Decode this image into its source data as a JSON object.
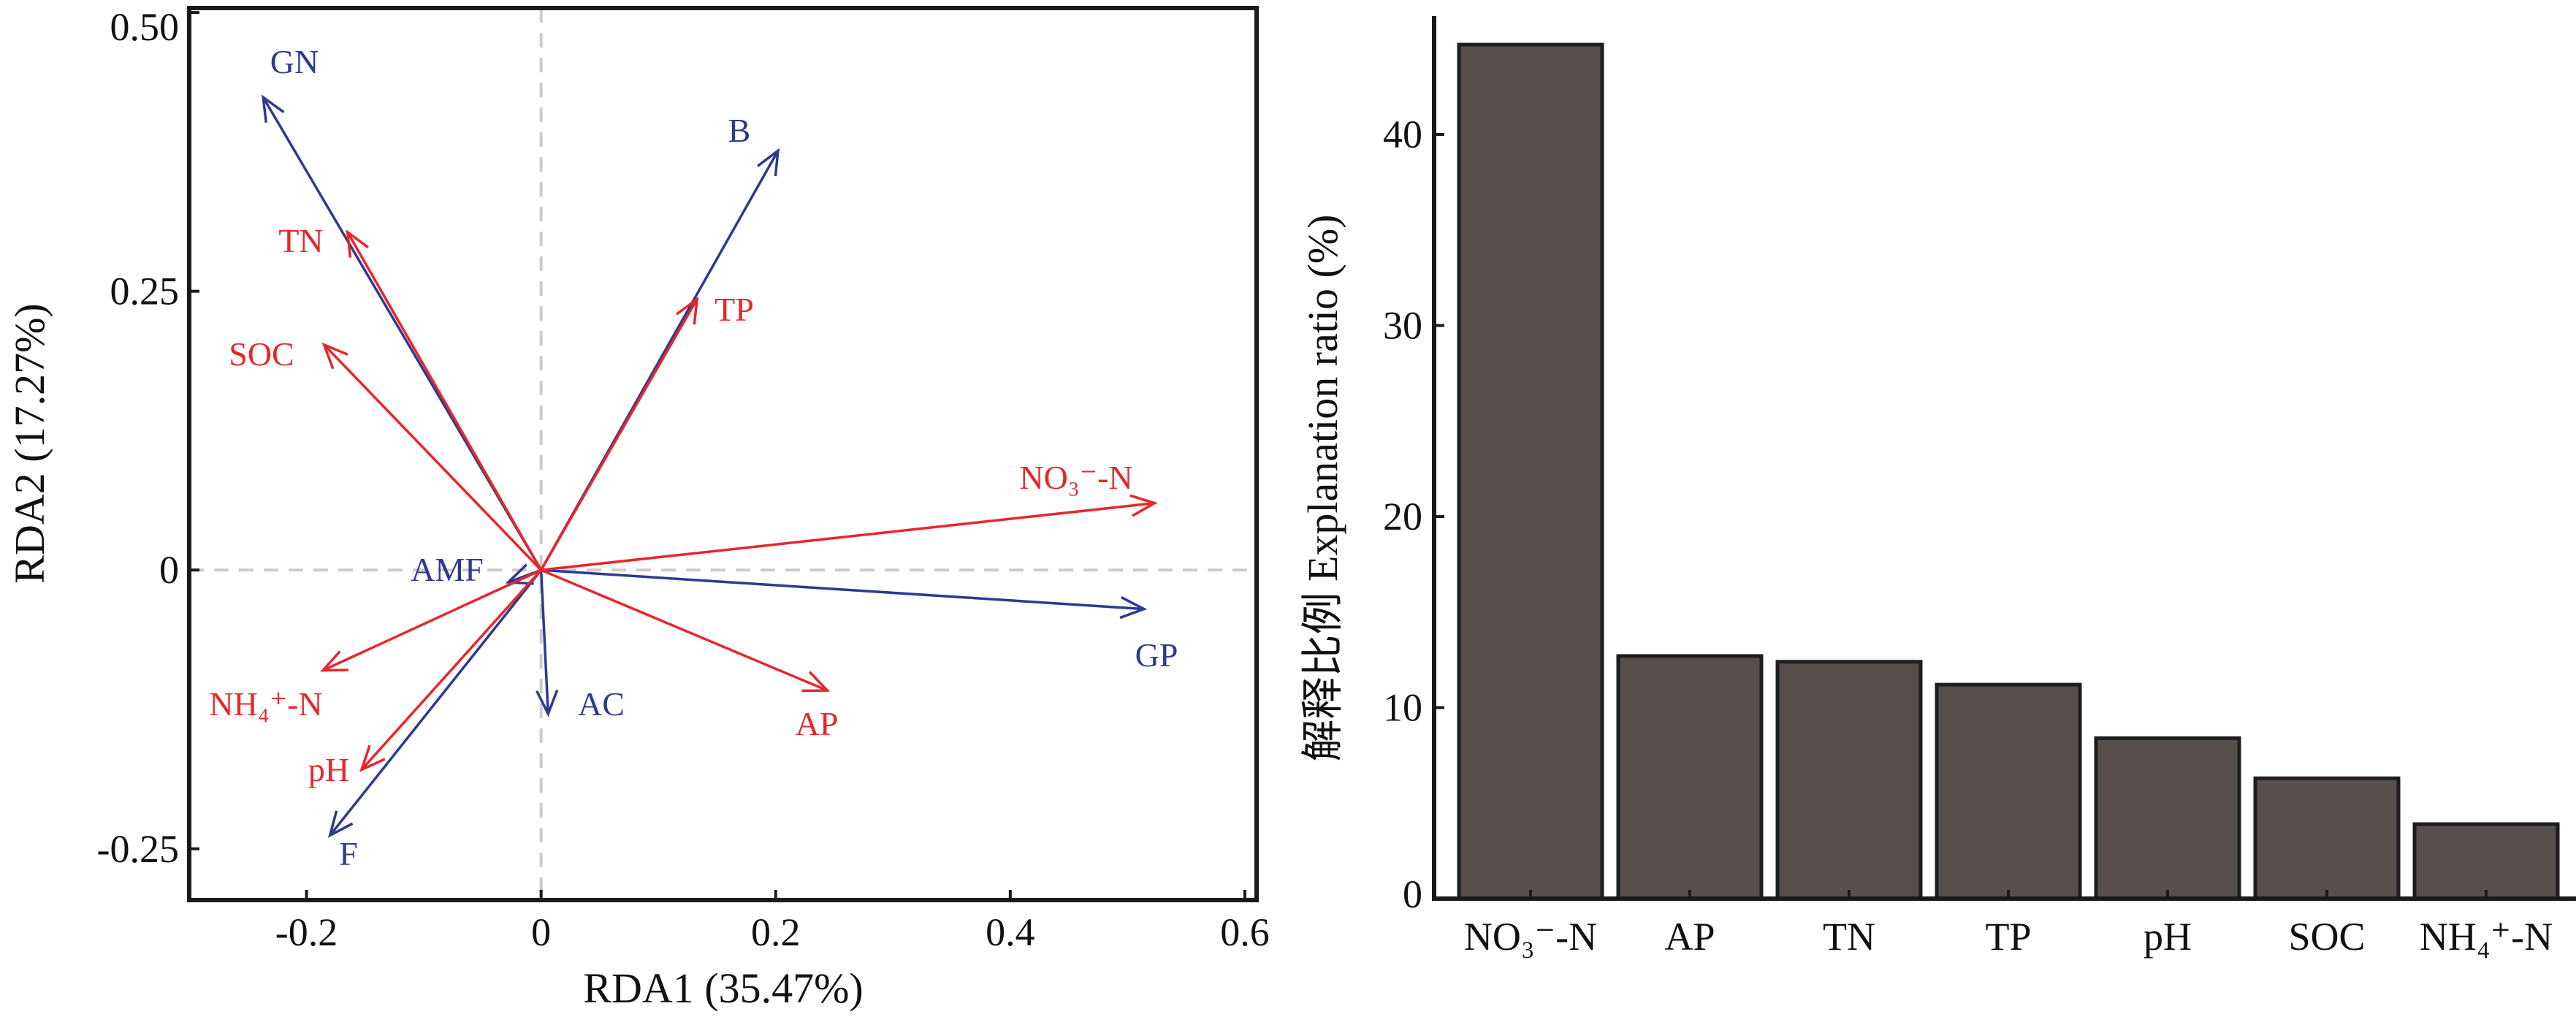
{
  "chart_data": [
    {
      "type": "biplot",
      "xlabel": "RDA1 (35.47%)",
      "ylabel": "RDA2 (17.27%)",
      "xlim": [
        -0.3,
        0.61
      ],
      "ylim": [
        -0.296,
        0.504
      ],
      "xticks": [
        -0.2,
        0,
        0.2,
        0.4,
        0.6
      ],
      "xtick_labels": [
        "-0.2",
        "0",
        "0.2",
        "0.4",
        "0.6"
      ],
      "yticks": [
        -0.25,
        0,
        0.25,
        0.5
      ],
      "ytick_labels": [
        "-0.25",
        "0",
        "0.25",
        "0.50"
      ],
      "zero_lines": "dashed",
      "grid": false,
      "colors": {
        "response": "#2e3a8f",
        "explanatory": "#e8262a",
        "zero_line": "#cccccc"
      },
      "series": [
        {
          "group": "response",
          "vectors": [
            {
              "label": "GN",
              "x": -0.237,
              "y": 0.424
            },
            {
              "label": "B",
              "x": 0.202,
              "y": 0.376
            },
            {
              "label": "GP",
              "x": 0.514,
              "y": -0.035
            },
            {
              "label": "AMF",
              "x": -0.028,
              "y": -0.011
            },
            {
              "label": "AC",
              "x": 0.006,
              "y": -0.129
            },
            {
              "label": "F",
              "x": -0.18,
              "y": -0.238
            }
          ]
        },
        {
          "group": "explanatory",
          "vectors": [
            {
              "label": "TN",
              "x": -0.165,
              "y": 0.303
            },
            {
              "label": "TP",
              "x": 0.133,
              "y": 0.243
            },
            {
              "label": "SOC",
              "x": -0.185,
              "y": 0.202
            },
            {
              "label": "NO₃⁻-N",
              "x": 0.523,
              "y": 0.06
            },
            {
              "label": "AP",
              "x": 0.244,
              "y": -0.108
            },
            {
              "label": "NH₄⁺-N",
              "x": -0.186,
              "y": -0.09
            },
            {
              "label": "pH",
              "x": -0.153,
              "y": -0.179
            }
          ]
        }
      ]
    },
    {
      "type": "bar",
      "ylabel": "解释比例 Explanation ratio (%)",
      "categories": [
        "NO₃⁻-N",
        "AP",
        "TN",
        "TP",
        "pH",
        "SOC",
        "NH₄⁺-N"
      ],
      "values": [
        44.7,
        12.7,
        12.4,
        11.2,
        8.4,
        6.3,
        3.9
      ],
      "ylim": [
        0,
        46
      ],
      "yticks": [
        0,
        10,
        20,
        30,
        40
      ],
      "ytick_labels": [
        "0",
        "10",
        "20",
        "30",
        "40"
      ],
      "grid": false,
      "colors": {
        "bar": "#574f4b",
        "edge": "#1e1e1e"
      }
    }
  ]
}
